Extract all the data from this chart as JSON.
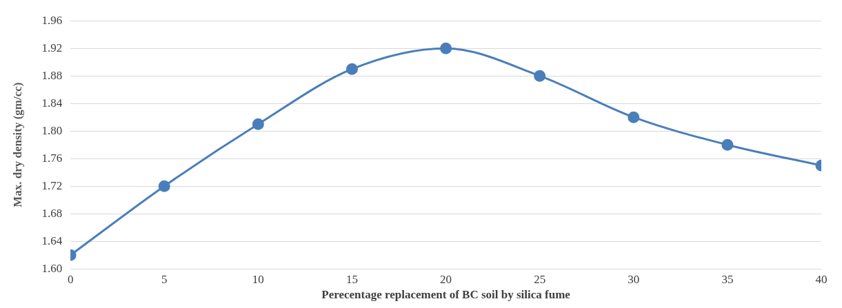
{
  "chart_data": {
    "type": "line",
    "xlabel": "Perecentage replacement of BC soil by silica fume",
    "ylabel": "Max. dry density (gm/cc)",
    "x": [
      0,
      5,
      10,
      15,
      20,
      25,
      30,
      35,
      40
    ],
    "series": [
      {
        "color": "#4a7ebb",
        "values": [
          1.62,
          1.72,
          1.81,
          1.89,
          1.92,
          1.88,
          1.82,
          1.78,
          1.75
        ]
      }
    ],
    "xlim": [
      0,
      40
    ],
    "xticks": [
      0,
      5,
      10,
      15,
      20,
      25,
      30,
      35,
      40
    ],
    "ylim": [
      1.6,
      1.96
    ],
    "yticks": [
      {
        "value": 1.6,
        "label": "1.60"
      },
      {
        "value": 1.64,
        "label": "1.64"
      },
      {
        "value": 1.68,
        "label": "1.68"
      },
      {
        "value": 1.72,
        "label": "1.72"
      },
      {
        "value": 1.76,
        "label": "1.76"
      },
      {
        "value": 1.8,
        "label": "1.80"
      },
      {
        "value": 1.84,
        "label": "1.84"
      },
      {
        "value": 1.88,
        "label": "1.88"
      },
      {
        "value": 1.92,
        "label": "1.92"
      },
      {
        "value": 1.96,
        "label": "1.96"
      }
    ],
    "grid": "y",
    "marker": "circle",
    "line_style": "solid",
    "legend": false
  }
}
